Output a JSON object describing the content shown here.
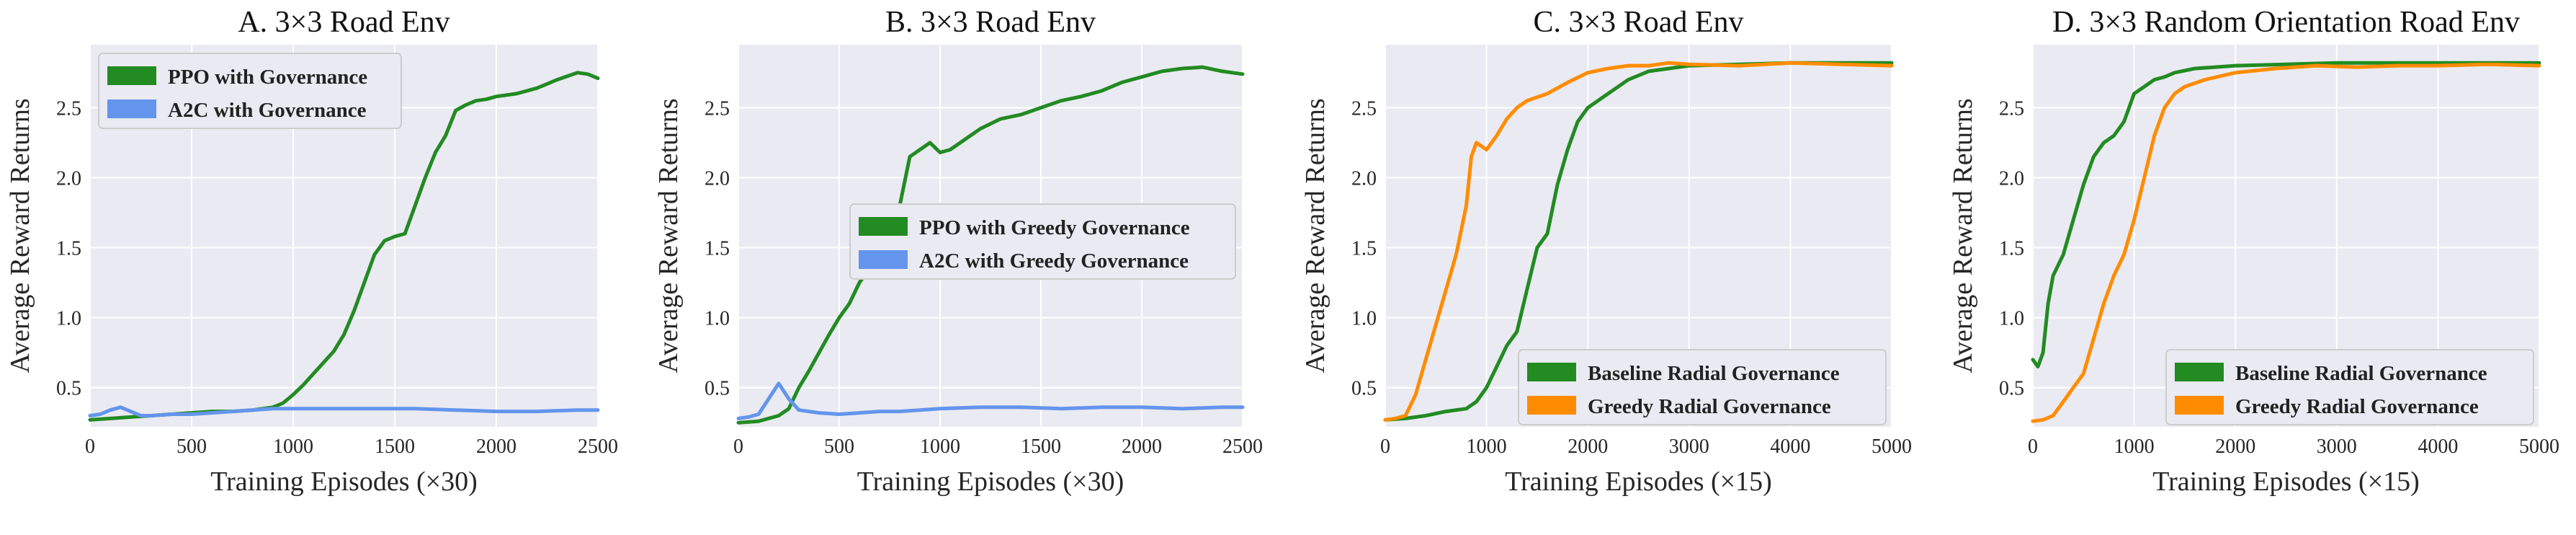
{
  "chart_data": [
    {
      "type": "line",
      "title": "A. 3×3 Road Env",
      "xlabel": "Training Episodes (×30)",
      "ylabel": "Average Reward Returns",
      "xlim": [
        0,
        2500
      ],
      "ylim": [
        0.22,
        2.95
      ],
      "xticks": [
        0,
        500,
        1000,
        1500,
        2000,
        2500
      ],
      "xtick_labels": [
        "0",
        "500",
        "1000",
        "1500",
        "2000",
        "2500"
      ],
      "yticks": [
        0.5,
        1.0,
        1.5,
        2.0,
        2.5
      ],
      "ytick_labels": [
        "0.5",
        "1.0",
        "1.5",
        "2.0",
        "2.5"
      ],
      "grid": true,
      "legend_position": "top-left",
      "series": [
        {
          "name": "PPO with Governance",
          "color": "#228b22",
          "points": [
            [
              0,
              0.27
            ],
            [
              100,
              0.28
            ],
            [
              200,
              0.29
            ],
            [
              300,
              0.3
            ],
            [
              400,
              0.31
            ],
            [
              500,
              0.32
            ],
            [
              600,
              0.33
            ],
            [
              700,
              0.33
            ],
            [
              800,
              0.34
            ],
            [
              900,
              0.36
            ],
            [
              950,
              0.39
            ],
            [
              1000,
              0.45
            ],
            [
              1050,
              0.52
            ],
            [
              1100,
              0.6
            ],
            [
              1150,
              0.68
            ],
            [
              1200,
              0.76
            ],
            [
              1250,
              0.88
            ],
            [
              1300,
              1.05
            ],
            [
              1350,
              1.25
            ],
            [
              1400,
              1.45
            ],
            [
              1450,
              1.55
            ],
            [
              1500,
              1.58
            ],
            [
              1550,
              1.6
            ],
            [
              1600,
              1.8
            ],
            [
              1650,
              2.0
            ],
            [
              1700,
              2.18
            ],
            [
              1750,
              2.3
            ],
            [
              1800,
              2.48
            ],
            [
              1850,
              2.52
            ],
            [
              1900,
              2.55
            ],
            [
              1950,
              2.56
            ],
            [
              2000,
              2.58
            ],
            [
              2100,
              2.6
            ],
            [
              2200,
              2.64
            ],
            [
              2300,
              2.7
            ],
            [
              2400,
              2.75
            ],
            [
              2450,
              2.74
            ],
            [
              2500,
              2.71
            ]
          ]
        },
        {
          "name": "A2C with Governance",
          "color": "#6495ed",
          "points": [
            [
              0,
              0.3
            ],
            [
              50,
              0.31
            ],
            [
              100,
              0.34
            ],
            [
              150,
              0.36
            ],
            [
              200,
              0.33
            ],
            [
              250,
              0.3
            ],
            [
              300,
              0.3
            ],
            [
              400,
              0.31
            ],
            [
              500,
              0.31
            ],
            [
              600,
              0.32
            ],
            [
              700,
              0.33
            ],
            [
              800,
              0.34
            ],
            [
              900,
              0.35
            ],
            [
              1000,
              0.35
            ],
            [
              1200,
              0.35
            ],
            [
              1400,
              0.35
            ],
            [
              1600,
              0.35
            ],
            [
              1800,
              0.34
            ],
            [
              2000,
              0.33
            ],
            [
              2200,
              0.33
            ],
            [
              2400,
              0.34
            ],
            [
              2500,
              0.34
            ]
          ]
        }
      ]
    },
    {
      "type": "line",
      "title": "B. 3×3 Road Env",
      "xlabel": "Training Episodes (×30)",
      "ylabel": "Average Reward Returns",
      "xlim": [
        0,
        2500
      ],
      "ylim": [
        0.22,
        2.95
      ],
      "xticks": [
        0,
        500,
        1000,
        1500,
        2000,
        2500
      ],
      "xtick_labels": [
        "0",
        "500",
        "1000",
        "1500",
        "2000",
        "2500"
      ],
      "yticks": [
        0.5,
        1.0,
        1.5,
        2.0,
        2.5
      ],
      "ytick_labels": [
        "0.5",
        "1.0",
        "1.5",
        "2.0",
        "2.5"
      ],
      "grid": true,
      "legend_position": "center-right",
      "series": [
        {
          "name": "PPO with Greedy Governance",
          "color": "#228b22",
          "points": [
            [
              0,
              0.25
            ],
            [
              100,
              0.26
            ],
            [
              200,
              0.3
            ],
            [
              250,
              0.35
            ],
            [
              300,
              0.5
            ],
            [
              350,
              0.62
            ],
            [
              400,
              0.75
            ],
            [
              450,
              0.88
            ],
            [
              500,
              1.0
            ],
            [
              550,
              1.1
            ],
            [
              600,
              1.25
            ],
            [
              650,
              1.35
            ],
            [
              700,
              1.3
            ],
            [
              750,
              1.45
            ],
            [
              800,
              1.8
            ],
            [
              850,
              2.15
            ],
            [
              900,
              2.2
            ],
            [
              950,
              2.25
            ],
            [
              1000,
              2.18
            ],
            [
              1050,
              2.2
            ],
            [
              1100,
              2.25
            ],
            [
              1150,
              2.3
            ],
            [
              1200,
              2.35
            ],
            [
              1300,
              2.42
            ],
            [
              1400,
              2.45
            ],
            [
              1500,
              2.5
            ],
            [
              1600,
              2.55
            ],
            [
              1700,
              2.58
            ],
            [
              1800,
              2.62
            ],
            [
              1900,
              2.68
            ],
            [
              2000,
              2.72
            ],
            [
              2100,
              2.76
            ],
            [
              2200,
              2.78
            ],
            [
              2300,
              2.79
            ],
            [
              2400,
              2.76
            ],
            [
              2500,
              2.74
            ]
          ]
        },
        {
          "name": "A2C with Greedy Governance",
          "color": "#6495ed",
          "points": [
            [
              0,
              0.28
            ],
            [
              50,
              0.29
            ],
            [
              100,
              0.31
            ],
            [
              150,
              0.42
            ],
            [
              200,
              0.53
            ],
            [
              250,
              0.42
            ],
            [
              300,
              0.34
            ],
            [
              400,
              0.32
            ],
            [
              500,
              0.31
            ],
            [
              600,
              0.32
            ],
            [
              700,
              0.33
            ],
            [
              800,
              0.33
            ],
            [
              900,
              0.34
            ],
            [
              1000,
              0.35
            ],
            [
              1200,
              0.36
            ],
            [
              1400,
              0.36
            ],
            [
              1600,
              0.35
            ],
            [
              1800,
              0.36
            ],
            [
              2000,
              0.36
            ],
            [
              2200,
              0.35
            ],
            [
              2400,
              0.36
            ],
            [
              2500,
              0.36
            ]
          ]
        }
      ]
    },
    {
      "type": "line",
      "title": "C. 3×3 Road Env",
      "xlabel": "Training Episodes (×15)",
      "ylabel": "Average Reward Returns",
      "xlim": [
        0,
        5000
      ],
      "ylim": [
        0.22,
        2.95
      ],
      "xticks": [
        0,
        1000,
        2000,
        3000,
        4000,
        5000
      ],
      "xtick_labels": [
        "0",
        "1000",
        "2000",
        "3000",
        "4000",
        "5000"
      ],
      "yticks": [
        0.5,
        1.0,
        1.5,
        2.0,
        2.5
      ],
      "ytick_labels": [
        "0.5",
        "1.0",
        "1.5",
        "2.0",
        "2.5"
      ],
      "grid": true,
      "legend_position": "bottom-right",
      "series": [
        {
          "name": "Baseline Radial Governance",
          "color": "#228b22",
          "points": [
            [
              0,
              0.27
            ],
            [
              200,
              0.28
            ],
            [
              400,
              0.3
            ],
            [
              600,
              0.33
            ],
            [
              800,
              0.35
            ],
            [
              900,
              0.4
            ],
            [
              1000,
              0.5
            ],
            [
              1100,
              0.65
            ],
            [
              1200,
              0.8
            ],
            [
              1300,
              0.9
            ],
            [
              1400,
              1.2
            ],
            [
              1500,
              1.5
            ],
            [
              1600,
              1.6
            ],
            [
              1700,
              1.95
            ],
            [
              1800,
              2.2
            ],
            [
              1900,
              2.4
            ],
            [
              2000,
              2.5
            ],
            [
              2200,
              2.6
            ],
            [
              2400,
              2.7
            ],
            [
              2600,
              2.76
            ],
            [
              2800,
              2.78
            ],
            [
              3000,
              2.8
            ],
            [
              3500,
              2.81
            ],
            [
              4000,
              2.82
            ],
            [
              4500,
              2.82
            ],
            [
              5000,
              2.82
            ]
          ]
        },
        {
          "name": "Greedy Radial Governance",
          "color": "#ff8c00",
          "points": [
            [
              0,
              0.27
            ],
            [
              100,
              0.28
            ],
            [
              200,
              0.3
            ],
            [
              300,
              0.45
            ],
            [
              400,
              0.7
            ],
            [
              500,
              0.95
            ],
            [
              600,
              1.2
            ],
            [
              700,
              1.45
            ],
            [
              800,
              1.8
            ],
            [
              850,
              2.15
            ],
            [
              900,
              2.25
            ],
            [
              1000,
              2.2
            ],
            [
              1100,
              2.3
            ],
            [
              1200,
              2.42
            ],
            [
              1300,
              2.5
            ],
            [
              1400,
              2.55
            ],
            [
              1600,
              2.6
            ],
            [
              1800,
              2.68
            ],
            [
              2000,
              2.75
            ],
            [
              2200,
              2.78
            ],
            [
              2400,
              2.8
            ],
            [
              2600,
              2.8
            ],
            [
              2800,
              2.82
            ],
            [
              3000,
              2.81
            ],
            [
              3500,
              2.8
            ],
            [
              4000,
              2.82
            ],
            [
              4500,
              2.81
            ],
            [
              5000,
              2.8
            ]
          ]
        }
      ]
    },
    {
      "type": "line",
      "title": "D. 3×3 Random Orientation Road Env",
      "xlabel": "Training Episodes (×15)",
      "ylabel": "Average Reward Returns",
      "xlim": [
        0,
        5000
      ],
      "ylim": [
        0.22,
        2.95
      ],
      "xticks": [
        0,
        1000,
        2000,
        3000,
        4000,
        5000
      ],
      "xtick_labels": [
        "0",
        "1000",
        "2000",
        "3000",
        "4000",
        "5000"
      ],
      "yticks": [
        0.5,
        1.0,
        1.5,
        2.0,
        2.5
      ],
      "ytick_labels": [
        "0.5",
        "1.0",
        "1.5",
        "2.0",
        "2.5"
      ],
      "grid": true,
      "legend_position": "bottom-right",
      "series": [
        {
          "name": "Baseline Radial Governance",
          "color": "#228b22",
          "points": [
            [
              0,
              0.7
            ],
            [
              50,
              0.65
            ],
            [
              100,
              0.75
            ],
            [
              150,
              1.1
            ],
            [
              200,
              1.3
            ],
            [
              300,
              1.45
            ],
            [
              400,
              1.7
            ],
            [
              500,
              1.95
            ],
            [
              600,
              2.15
            ],
            [
              700,
              2.25
            ],
            [
              800,
              2.3
            ],
            [
              900,
              2.4
            ],
            [
              1000,
              2.6
            ],
            [
              1100,
              2.65
            ],
            [
              1200,
              2.7
            ],
            [
              1300,
              2.72
            ],
            [
              1400,
              2.75
            ],
            [
              1600,
              2.78
            ],
            [
              1800,
              2.79
            ],
            [
              2000,
              2.8
            ],
            [
              2500,
              2.81
            ],
            [
              3000,
              2.82
            ],
            [
              3500,
              2.82
            ],
            [
              4000,
              2.82
            ],
            [
              4500,
              2.82
            ],
            [
              5000,
              2.82
            ]
          ]
        },
        {
          "name": "Greedy Radial Governance",
          "color": "#ff8c00",
          "points": [
            [
              0,
              0.26
            ],
            [
              100,
              0.27
            ],
            [
              200,
              0.3
            ],
            [
              300,
              0.4
            ],
            [
              400,
              0.5
            ],
            [
              500,
              0.6
            ],
            [
              600,
              0.85
            ],
            [
              700,
              1.1
            ],
            [
              800,
              1.3
            ],
            [
              900,
              1.45
            ],
            [
              1000,
              1.7
            ],
            [
              1100,
              2.0
            ],
            [
              1200,
              2.3
            ],
            [
              1300,
              2.5
            ],
            [
              1400,
              2.6
            ],
            [
              1500,
              2.65
            ],
            [
              1700,
              2.7
            ],
            [
              2000,
              2.75
            ],
            [
              2400,
              2.78
            ],
            [
              2800,
              2.8
            ],
            [
              3200,
              2.79
            ],
            [
              3600,
              2.8
            ],
            [
              4000,
              2.8
            ],
            [
              4500,
              2.81
            ],
            [
              5000,
              2.8
            ]
          ]
        }
      ]
    }
  ]
}
